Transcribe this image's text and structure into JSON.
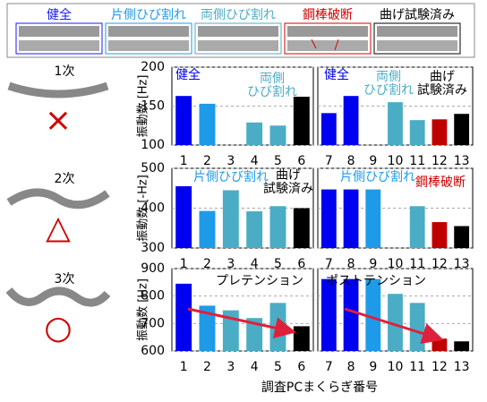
{
  "legend": [
    {
      "label": "健全",
      "color": "#1a1aff"
    },
    {
      "label": "片側ひび割れ",
      "color": "#1e9be8"
    },
    {
      "label": "両側ひび割れ",
      "color": "#4bacc6"
    },
    {
      "label": "鋼棒破断",
      "color": "#d00000"
    },
    {
      "label": "曲げ試験済み",
      "color": "#000000"
    }
  ],
  "modes": [
    {
      "label": "1次",
      "symbol": "×"
    },
    {
      "label": "2次",
      "symbol": "△"
    },
    {
      "label": "3次",
      "symbol": "○"
    }
  ],
  "xlabel": "調査PCまくらぎ番号",
  "chart_data": [
    {
      "type": "bar",
      "ylabel": "振動数 [Hz]",
      "categories": [
        "1",
        "2",
        "3",
        "4",
        "5",
        "6"
      ],
      "values": [
        163,
        153,
        null,
        129,
        125,
        162
      ],
      "colors": [
        "#0000f0",
        "#1e9be8",
        "#4bacc6",
        "#4bacc6",
        "#4bacc6",
        "#000000"
      ],
      "ylim": [
        100,
        200
      ],
      "yticks": [
        100,
        150,
        200
      ],
      "grid": true,
      "annotations": [
        {
          "lines": [
            "健全"
          ],
          "color": "#0000f0"
        },
        {
          "lines": [
            "両側",
            "ひび割れ"
          ],
          "color": "#4bacc6"
        }
      ]
    },
    {
      "type": "bar",
      "categories": [
        "7",
        "8",
        "9",
        "10",
        "11",
        "12",
        "13"
      ],
      "values": [
        141,
        163,
        null,
        155,
        132,
        133,
        140
      ],
      "colors": [
        "#0000f0",
        "#0000f0",
        "#1e9be8",
        "#4bacc6",
        "#4bacc6",
        "#c00000",
        "#000000"
      ],
      "ylim": [
        100,
        200
      ],
      "yticks": [
        100,
        150,
        200
      ],
      "grid": true,
      "annotations": [
        {
          "lines": [
            "健全"
          ],
          "color": "#0000f0"
        },
        {
          "lines": [
            "両側",
            "ひび割れ"
          ],
          "color": "#4bacc6"
        },
        {
          "lines": [
            "曲げ",
            "試験済み"
          ],
          "color": "#000000"
        }
      ]
    },
    {
      "type": "bar",
      "ylabel": "振動数 [-Hz]",
      "categories": [
        "1",
        "2",
        "3",
        "4",
        "5",
        "6"
      ],
      "values": [
        455,
        393,
        445,
        392,
        405,
        400
      ],
      "colors": [
        "#0000f0",
        "#1e9be8",
        "#4bacc6",
        "#4bacc6",
        "#4bacc6",
        "#000000"
      ],
      "ylim": [
        300,
        500
      ],
      "yticks": [
        300,
        400,
        500
      ],
      "grid": true,
      "annotations": [
        {
          "lines": [
            "片側ひび割れ"
          ],
          "color": "#1e9be8"
        },
        {
          "lines": [
            "曲げ",
            "試験済み"
          ],
          "color": "#000000"
        }
      ]
    },
    {
      "type": "bar",
      "categories": [
        "7",
        "8",
        "9",
        "10",
        "11",
        "12",
        "13"
      ],
      "values": [
        447,
        447,
        447,
        null,
        405,
        365,
        355
      ],
      "colors": [
        "#0000f0",
        "#0000f0",
        "#1e9be8",
        "#4bacc6",
        "#4bacc6",
        "#c00000",
        "#000000"
      ],
      "ylim": [
        300,
        500
      ],
      "yticks": [
        300,
        400,
        500
      ],
      "grid": true,
      "annotations": [
        {
          "lines": [
            "片側ひび割れ"
          ],
          "color": "#1e9be8"
        },
        {
          "lines": [
            "鋼棒破断"
          ],
          "color": "#d00000"
        }
      ]
    },
    {
      "type": "bar",
      "ylabel": "振動数 [Hz]",
      "categories": [
        "1",
        "2",
        "3",
        "4",
        "5",
        "6"
      ],
      "values": [
        845,
        765,
        748,
        720,
        775,
        690
      ],
      "colors": [
        "#0000f0",
        "#1e9be8",
        "#4bacc6",
        "#4bacc6",
        "#4bacc6",
        "#000000"
      ],
      "ylim": [
        600,
        900
      ],
      "yticks": [
        600,
        700,
        800,
        900
      ],
      "grid": true,
      "annotations": [
        {
          "lines": [
            "プレテンション"
          ],
          "color": "#000000"
        }
      ]
    },
    {
      "type": "bar",
      "categories": [
        "7",
        "8",
        "9",
        "10",
        "11",
        "12",
        "13"
      ],
      "values": [
        862,
        862,
        862,
        808,
        775,
        645,
        635
      ],
      "colors": [
        "#0000f0",
        "#0000f0",
        "#1e9be8",
        "#4bacc6",
        "#4bacc6",
        "#c00000",
        "#000000"
      ],
      "ylim": [
        600,
        900
      ],
      "yticks": [
        600,
        700,
        800,
        900
      ],
      "grid": true,
      "annotations": [
        {
          "lines": [
            "ポストテンション"
          ],
          "color": "#000000"
        }
      ]
    }
  ]
}
